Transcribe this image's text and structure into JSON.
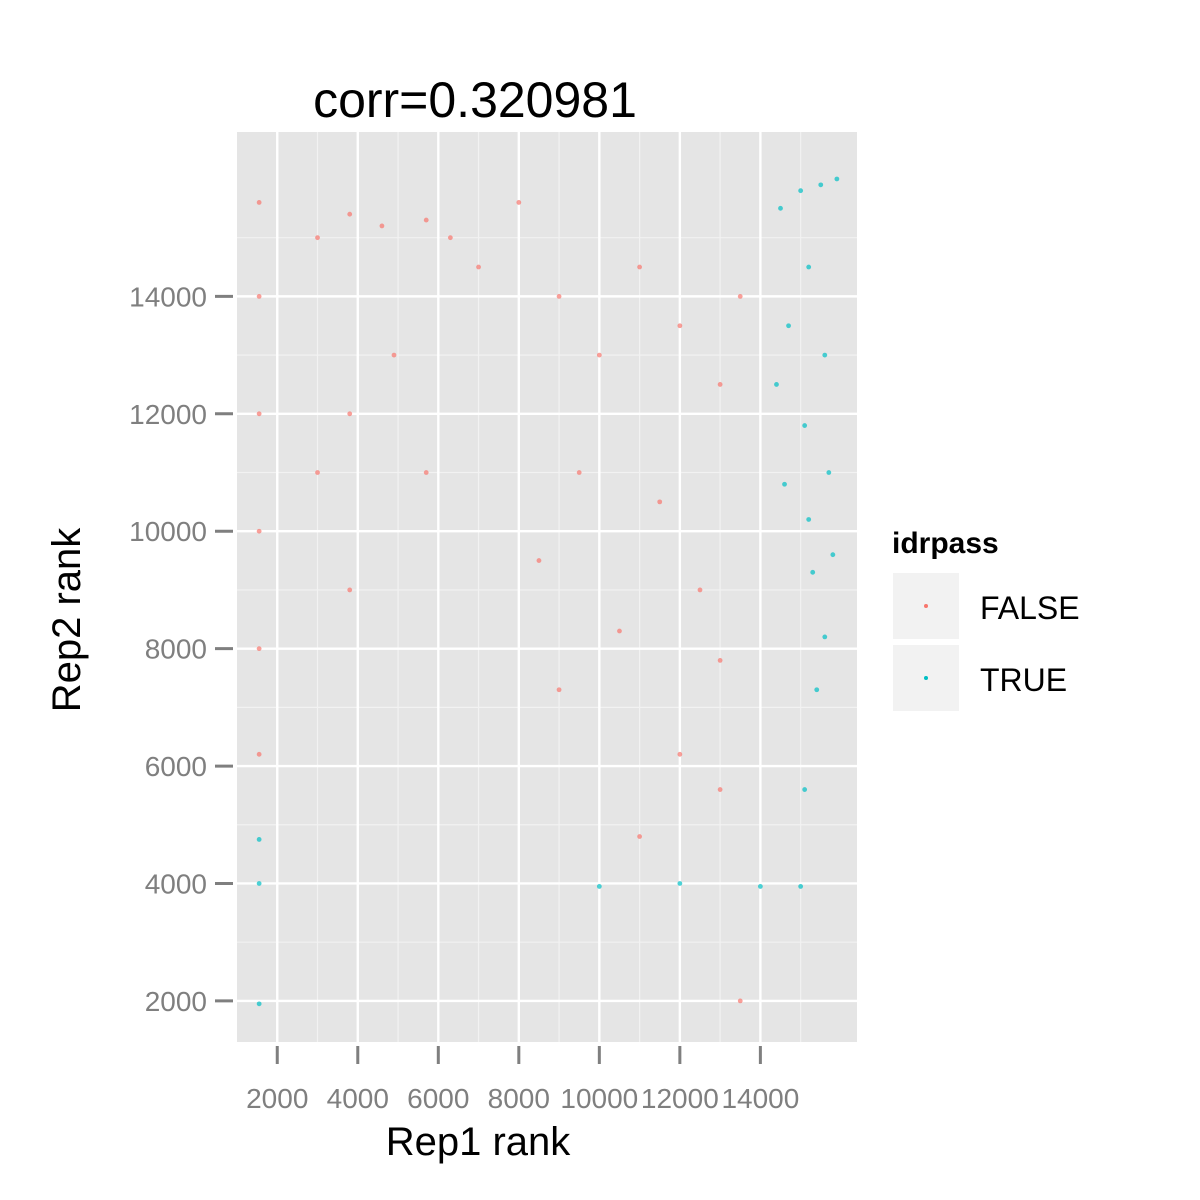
{
  "chart_data": {
    "type": "scatter",
    "title": "corr=0.320981",
    "xlabel": "Rep1 rank",
    "ylabel": "Rep2 rank",
    "xlim": [
      1000,
      16400
    ],
    "ylim": [
      1300,
      16800
    ],
    "xticks": [
      2000,
      4000,
      6000,
      8000,
      10000,
      12000,
      14000
    ],
    "yticks": [
      2000,
      4000,
      6000,
      8000,
      10000,
      12000,
      14000
    ],
    "xtick_labels": [
      "2000",
      "4000",
      "6000",
      "8000",
      "10000",
      "12000",
      "14000"
    ],
    "ytick_labels": [
      "2000",
      "4000",
      "6000",
      "8000",
      "10000",
      "12000",
      "14000"
    ],
    "grid": true,
    "legend": {
      "title": "idrpass",
      "placement": "right",
      "entries": [
        {
          "label": "FALSE",
          "color": "#F8766D"
        },
        {
          "label": "TRUE",
          "color": "#00BFC4"
        }
      ]
    },
    "series": [
      {
        "name": "FALSE",
        "color": "#F8766D",
        "description_points": [
          [
            1550,
            15600
          ],
          [
            1550,
            14000
          ],
          [
            1550,
            12000
          ],
          [
            1550,
            10000
          ],
          [
            1550,
            8000
          ],
          [
            1550,
            6200
          ],
          [
            3000,
            15000
          ],
          [
            3000,
            11000
          ],
          [
            3800,
            15400
          ],
          [
            3800,
            12000
          ],
          [
            3800,
            9000
          ],
          [
            4600,
            15200
          ],
          [
            4900,
            13000
          ],
          [
            5700,
            15300
          ],
          [
            5700,
            11000
          ],
          [
            6300,
            15000
          ],
          [
            7000,
            14500
          ],
          [
            8000,
            15600
          ],
          [
            9000,
            14000
          ],
          [
            10000,
            13000
          ],
          [
            11000,
            14500
          ],
          [
            12000,
            13500
          ],
          [
            13000,
            12500
          ],
          [
            13500,
            14000
          ],
          [
            9500,
            11000
          ],
          [
            11500,
            10500
          ],
          [
            8500,
            9500
          ],
          [
            12500,
            9000
          ],
          [
            10500,
            8300
          ],
          [
            13000,
            7800
          ],
          [
            9000,
            7300
          ],
          [
            12000,
            6200
          ],
          [
            13000,
            5600
          ],
          [
            11000,
            4800
          ],
          [
            13500,
            2000
          ]
        ]
      },
      {
        "name": "TRUE",
        "color": "#00BFC4",
        "description_points": [
          [
            15900,
            16000
          ],
          [
            15500,
            15900
          ],
          [
            15000,
            15800
          ],
          [
            14500,
            15500
          ],
          [
            15200,
            14500
          ],
          [
            14700,
            13500
          ],
          [
            15600,
            13000
          ],
          [
            14400,
            12500
          ],
          [
            15100,
            11800
          ],
          [
            15700,
            11000
          ],
          [
            14600,
            10800
          ],
          [
            15200,
            10200
          ],
          [
            15800,
            9600
          ],
          [
            15300,
            9300
          ],
          [
            15600,
            8200
          ],
          [
            15400,
            7300
          ],
          [
            15100,
            5600
          ],
          [
            12000,
            4000
          ],
          [
            10000,
            3950
          ],
          [
            14000,
            3950
          ],
          [
            15000,
            3950
          ],
          [
            1550,
            4750
          ],
          [
            1550,
            4000
          ],
          [
            1550,
            1950
          ]
        ]
      }
    ]
  }
}
